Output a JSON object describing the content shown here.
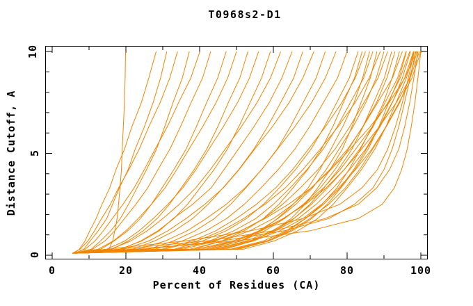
{
  "chart_data": {
    "type": "line",
    "title": "T0968s2-D1",
    "xlabel": "Percent of Residues (CA)",
    "ylabel": "Distance Cutoff, A",
    "xlim": [
      0,
      100
    ],
    "ylim": [
      0,
      10
    ],
    "x_major_ticks": [
      0,
      20,
      40,
      60,
      80,
      100
    ],
    "x_minor_ticks": [
      10,
      30,
      50,
      70,
      90
    ],
    "y_major_ticks": [
      0,
      5,
      10
    ],
    "y_minor_ticks": [
      1,
      2,
      3,
      4,
      6,
      7,
      8,
      9
    ],
    "grid": false,
    "legend": false,
    "line_color": "#F28500",
    "axis_color": "#000000",
    "background": "#FFFFFF",
    "y_samples": [
      0.1,
      0.3,
      0.7,
      1.2,
      1.8,
      2.5,
      3.3,
      4.2,
      5.2,
      6.3,
      7.5,
      8.7,
      10.0
    ],
    "curves_x": [
      [
        6.5,
        15.4,
        16.4,
        17.0,
        17.6,
        18.0,
        18.4,
        18.8,
        19.0,
        19.3,
        19.6,
        19.8,
        19.9
      ],
      [
        6.0,
        7.4,
        8.9,
        10.2,
        11.9,
        13.5,
        15.6,
        17.3,
        19.6,
        21.6,
        24.2,
        26.2,
        28.2
      ],
      [
        6.2,
        8.6,
        10.3,
        12.5,
        14.8,
        16.4,
        18.2,
        20.6,
        22.5,
        25.0,
        27.4,
        29.4,
        31.1
      ],
      [
        5.5,
        7.6,
        9.7,
        11.5,
        13.4,
        15.8,
        18.0,
        20.8,
        23.6,
        26.2,
        29.3,
        31.9,
        34.0
      ],
      [
        6.0,
        10.6,
        13.1,
        15.9,
        18.5,
        20.7,
        23.0,
        25.6,
        28.3,
        30.5,
        32.8,
        35.3,
        37.2
      ],
      [
        6.0,
        9.0,
        11.6,
        13.9,
        16.3,
        19.2,
        22.2,
        25.0,
        27.9,
        31.2,
        34.3,
        37.6,
        40.1
      ],
      [
        6.5,
        11.0,
        14.3,
        17.0,
        19.6,
        22.7,
        25.9,
        28.7,
        31.9,
        34.8,
        37.7,
        40.8,
        43.0
      ],
      [
        6.0,
        13.2,
        16.8,
        20.5,
        23.9,
        26.9,
        29.8,
        33.0,
        36.3,
        39.1,
        41.9,
        44.9,
        47.2
      ],
      [
        6.0,
        12.5,
        16.6,
        20.0,
        23.3,
        26.9,
        30.6,
        33.8,
        37.1,
        40.8,
        44.5,
        47.6,
        50.0
      ],
      [
        6.5,
        16.3,
        20.6,
        24.7,
        28.5,
        31.8,
        35.0,
        38.5,
        41.9,
        44.9,
        47.8,
        50.9,
        53.1
      ],
      [
        6.0,
        14.8,
        19.7,
        23.6,
        27.4,
        31.4,
        35.4,
        39.0,
        42.5,
        46.4,
        50.3,
        53.5,
        56.0
      ],
      [
        5.5,
        18.8,
        24.0,
        28.7,
        33.0,
        36.7,
        40.1,
        43.9,
        47.5,
        50.6,
        53.7,
        56.8,
        59.2
      ],
      [
        6.0,
        15.9,
        21.3,
        25.8,
        30.0,
        34.5,
        38.9,
        42.9,
        46.9,
        51.3,
        55.6,
        59.2,
        62.0
      ],
      [
        6.0,
        18.4,
        24.3,
        29.1,
        32.8,
        38.1,
        43.1,
        46.6,
        50.5,
        54.7,
        58.9,
        62.3,
        65.1
      ],
      [
        6.5,
        21.8,
        27.8,
        33.2,
        38.1,
        42.3,
        46.3,
        50.6,
        54.7,
        58.4,
        62.0,
        65.5,
        68.0
      ],
      [
        6.0,
        19.6,
        26.2,
        31.4,
        36.3,
        41.4,
        46.4,
        50.7,
        54.9,
        59.7,
        64.3,
        68.0,
        71.0
      ],
      [
        6.0,
        26.2,
        32.9,
        38.8,
        44.0,
        48.4,
        52.5,
        56.8,
        61.0,
        64.6,
        68.1,
        71.6,
        74.1
      ],
      [
        5.5,
        23.3,
        30.7,
        36.6,
        41.8,
        47.2,
        52.3,
        56.8,
        61.1,
        65.8,
        70.4,
        74.1,
        77.0
      ],
      [
        6.0,
        28.0,
        35.3,
        41.7,
        47.3,
        52.1,
        56.6,
        61.3,
        65.8,
        69.8,
        73.6,
        77.4,
        80.0
      ],
      [
        6.0,
        33.2,
        40.8,
        47.2,
        52.7,
        57.3,
        61.6,
        66.0,
        70.2,
        73.8,
        77.2,
        80.6,
        83.0
      ],
      [
        6.5,
        29.8,
        38.0,
        44.4,
        49.9,
        55.4,
        60.6,
        65.2,
        69.5,
        74.1,
        78.6,
        82.2,
        85.0
      ],
      [
        6.0,
        34.6,
        42.7,
        49.3,
        55.2,
        60.0,
        64.5,
        69.1,
        73.5,
        77.3,
        80.9,
        84.5,
        87.0
      ],
      [
        6.0,
        30.6,
        39.3,
        46.0,
        51.9,
        57.7,
        63.2,
        68.0,
        72.7,
        77.5,
        82.2,
        86.0,
        89.0
      ],
      [
        5.5,
        35.7,
        44.2,
        51.3,
        57.4,
        62.5,
        67.3,
        72.1,
        76.7,
        80.7,
        84.6,
        88.4,
        91.0
      ],
      [
        6.0,
        42.5,
        51.3,
        57.7,
        63.0,
        68.1,
        72.7,
        76.7,
        80.3,
        84.2,
        88.0,
        90.8,
        93.0
      ],
      [
        6.0,
        37.4,
        46.3,
        53.6,
        60.0,
        65.3,
        70.3,
        75.3,
        80.1,
        84.3,
        88.3,
        92.3,
        95.0
      ],
      [
        6.5,
        44.1,
        52.7,
        59.7,
        65.5,
        70.3,
        74.7,
        79.2,
        83.4,
        87.0,
        90.3,
        93.7,
        96.0
      ],
      [
        6.0,
        40.4,
        49.8,
        56.8,
        62.7,
        68.3,
        73.6,
        78.1,
        82.3,
        86.8,
        91.1,
        94.4,
        97.0
      ],
      [
        6.0,
        44.6,
        53.5,
        60.6,
        66.7,
        71.6,
        76.2,
        80.7,
        85.0,
        88.7,
        92.2,
        95.6,
        98.0
      ],
      [
        5.5,
        49.1,
        58.2,
        64.6,
        69.9,
        75.0,
        79.5,
        83.4,
        86.9,
        90.6,
        94.3,
        96.9,
        99.0
      ],
      [
        6.0,
        45.5,
        54.6,
        61.8,
        68.0,
        73.1,
        77.7,
        82.3,
        86.7,
        90.5,
        94.1,
        97.6,
        100.0
      ],
      [
        6.0,
        39.2,
        49.0,
        56.3,
        62.6,
        68.7,
        74.3,
        79.2,
        83.9,
        88.7,
        93.4,
        97.1,
        99.6
      ],
      [
        6.5,
        33.9,
        43.6,
        51.1,
        57.7,
        64.1,
        70.2,
        75.6,
        80.8,
        86.2,
        91.4,
        95.7,
        98.8
      ],
      [
        6.0,
        52.0,
        60.2,
        66.6,
        72.0,
        76.2,
        80.0,
        83.9,
        87.5,
        90.5,
        93.3,
        96.1,
        98.1
      ],
      [
        6.0,
        48.4,
        57.3,
        63.5,
        68.7,
        73.6,
        78.1,
        81.8,
        85.2,
        88.9,
        92.3,
        95.0,
        97.2
      ],
      [
        5.5,
        50.7,
        58.8,
        65.1,
        70.4,
        74.6,
        78.3,
        82.1,
        85.7,
        88.6,
        91.3,
        94.1,
        96.1
      ],
      [
        6.0,
        50.0,
        58.3,
        64.0,
        68.7,
        73.2,
        77.2,
        80.5,
        83.6,
        86.8,
        89.9,
        92.2,
        94.2
      ],
      [
        6.0,
        46.1,
        54.1,
        60.4,
        65.6,
        69.9,
        73.7,
        77.6,
        81.3,
        84.3,
        87.2,
        90.1,
        92.1
      ],
      [
        6.5,
        41.6,
        50.0,
        56.1,
        61.2,
        66.1,
        70.6,
        74.3,
        77.8,
        81.6,
        85.1,
        87.9,
        90.0
      ],
      [
        6.0,
        47.0,
        54.3,
        60.0,
        64.8,
        68.6,
        72.0,
        75.4,
        78.7,
        81.3,
        83.8,
        86.3,
        88.1
      ],
      [
        6.0,
        43.3,
        51.1,
        56.6,
        61.1,
        65.4,
        69.4,
        72.6,
        75.6,
        78.8,
        81.9,
        84.2,
        86.1
      ],
      [
        5.5,
        38.5,
        46.0,
        52.1,
        57.3,
        61.5,
        65.3,
        69.3,
        73.0,
        76.1,
        79.0,
        82.0,
        84.1
      ],
      [
        6.0,
        22.0,
        50.0,
        70.0,
        83.0,
        89.5,
        92.8,
        94.8,
        96.3,
        97.4,
        98.4,
        99.2,
        100.0
      ],
      [
        6.0,
        18.0,
        42.0,
        60.0,
        74.0,
        83.0,
        88.0,
        91.5,
        94.0,
        95.6,
        97.0,
        98.1,
        99.2
      ],
      [
        5.5,
        15.0,
        36.0,
        54.0,
        68.0,
        78.0,
        84.0,
        88.2,
        91.0,
        93.1,
        95.0,
        96.6,
        98.2
      ],
      [
        6.0,
        25.0,
        46.0,
        63.0,
        75.0,
        82.0,
        87.0,
        90.0,
        92.2,
        94.0,
        95.6,
        97.1,
        98.6
      ]
    ]
  }
}
